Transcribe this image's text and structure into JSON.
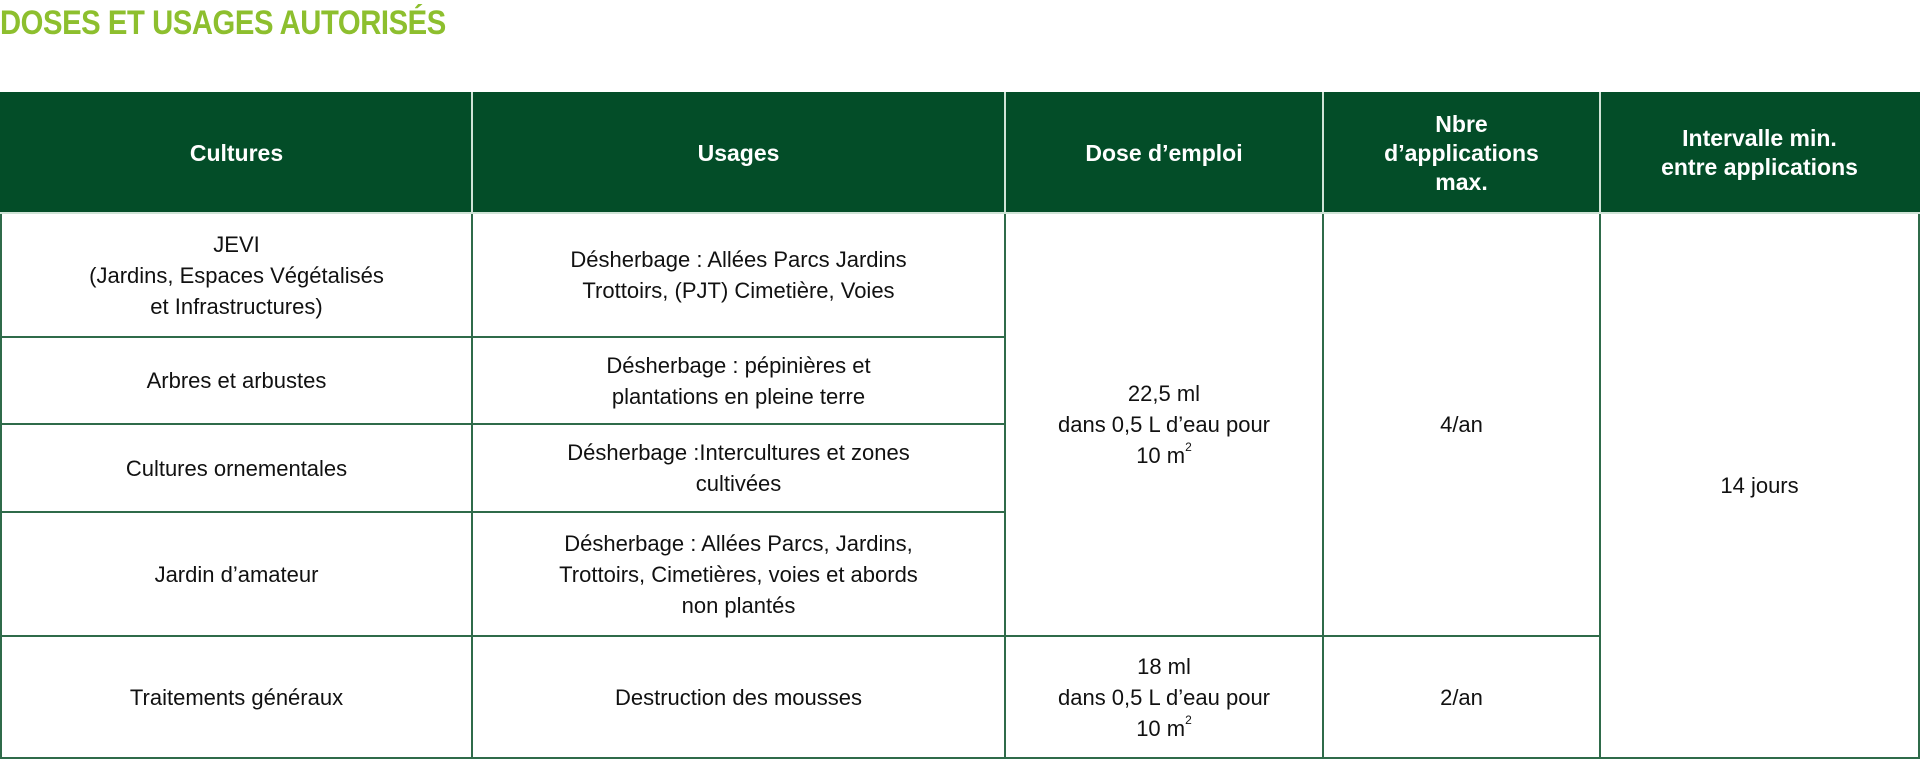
{
  "title": "DOSES ET USAGES AUTORISÉS",
  "colors": {
    "title": "#8dbf2e",
    "header_bg": "#034d28",
    "border": "#2f6b4a"
  },
  "table": {
    "headers": [
      "Cultures",
      "Usages",
      "Dose d’emploi",
      "Nbre d’applications max.",
      "Intervalle min. entre applications"
    ],
    "header_lines": {
      "nbre": [
        "Nbre",
        "d’applications",
        "max."
      ],
      "intervalle": [
        "Intervalle min.",
        "entre applications"
      ]
    },
    "rows": [
      {
        "culture": [
          "JEVI",
          "(Jardins, Espaces Végétalisés",
          "et Infrastructures)"
        ],
        "usage": [
          "Désherbage : Allées Parcs Jardins",
          "Trottoirs, (PJT) Cimetière, Voies"
        ]
      },
      {
        "culture": [
          "Arbres et arbustes"
        ],
        "usage": [
          "Désherbage : pépinières et",
          "plantations en pleine terre"
        ]
      },
      {
        "culture": [
          "Cultures ornementales"
        ],
        "usage": [
          "Désherbage :Intercultures et zones",
          "cultivées"
        ]
      },
      {
        "culture": [
          "Jardin d’amateur"
        ],
        "usage": [
          "Désherbage : Allées Parcs, Jardins,",
          "Trottoirs, Cimetières, voies et abords",
          "non plantés"
        ]
      },
      {
        "culture": [
          "Traitements généraux"
        ],
        "usage": [
          "Destruction des mousses"
        ]
      }
    ],
    "dose_1": {
      "amount": "22,5 ml",
      "water": "dans 0,5 L d’eau pour",
      "area": "10 m",
      "exp": "2"
    },
    "dose_2": {
      "amount": "18 ml",
      "water": "dans 0,5 L d’eau pour",
      "area": "10 m",
      "exp": "2"
    },
    "applications_1": "4/an",
    "applications_2": "2/an",
    "interval": "14 jours"
  }
}
